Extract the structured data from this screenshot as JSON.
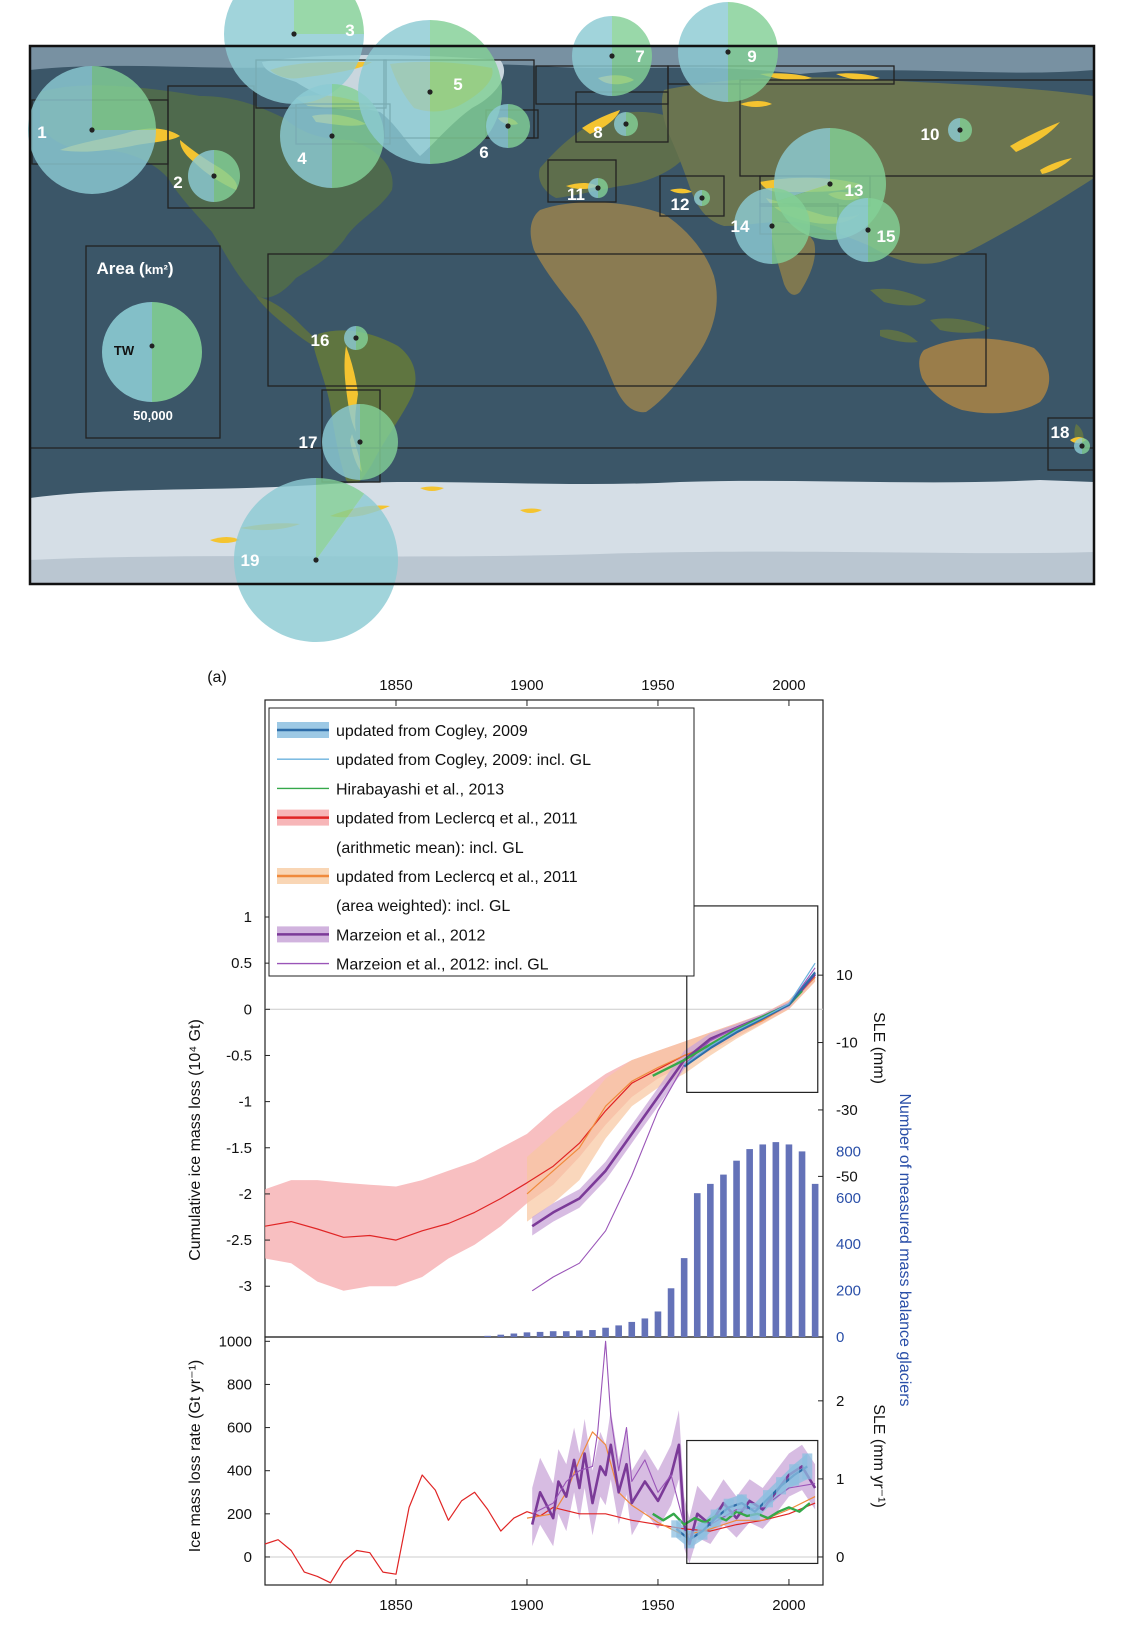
{
  "panel_label": "(a)",
  "map": {
    "legend_title": "Area",
    "legend_unit": "km²",
    "legend_center_label": "TW",
    "legend_value": "50,000",
    "regions": [
      {
        "id": "1",
        "area_scale": 1.06
      },
      {
        "id": "2",
        "area_scale": 0.33
      },
      {
        "id": "3",
        "area_scale": 1.0
      },
      {
        "id": "4",
        "area_scale": 0.63
      },
      {
        "id": "5",
        "area_scale": 1.17
      },
      {
        "id": "6",
        "area_scale": 0.08
      },
      {
        "id": "7",
        "area_scale": 0.38
      },
      {
        "id": "8",
        "area_scale": 0.04
      },
      {
        "id": "9",
        "area_scale": 0.59
      },
      {
        "id": "10",
        "area_scale": 0.03
      },
      {
        "id": "11",
        "area_scale": 0.02
      },
      {
        "id": "12",
        "area_scale": 0.01
      },
      {
        "id": "13",
        "area_scale": 0.75
      },
      {
        "id": "14",
        "area_scale": 0.4
      },
      {
        "id": "15",
        "area_scale": 0.26
      },
      {
        "id": "16",
        "area_scale": 0.04
      },
      {
        "id": "17",
        "area_scale": 0.35
      },
      {
        "id": "18",
        "area_scale": 0.01
      },
      {
        "id": "19",
        "area_scale": 1.75
      }
    ],
    "colors": {
      "ocean": "#3b5668",
      "circle_blue": "#8ccbd3",
      "circle_green": "#83d096",
      "glacier": "#f4c430",
      "ice": "#d9e2e8",
      "box": "#222222"
    }
  },
  "chart_data": [
    {
      "type": "line",
      "x_axis_top_ticks": [
        "1850",
        "1900",
        "1950",
        "2000"
      ],
      "xlim": [
        1800,
        2013
      ],
      "ylabel": "Cumulative ice mass loss (10⁴ Gt)",
      "ylim": [
        -3.55,
        1.0
      ],
      "y_ticks": [
        "1",
        "0.5",
        "0",
        "-0.5",
        "-1",
        "-1.5",
        "-2",
        "-2.5",
        "-3"
      ],
      "y2label": "SLE (mm)",
      "y2_ticks": [
        "10",
        "-10",
        "-30",
        "-50"
      ],
      "y3label": "Number of measured mass balance glaciers",
      "y3_ticks": [
        "800",
        "600",
        "400",
        "200",
        "0"
      ],
      "legend": [
        {
          "label": "updated from Cogley, 2009",
          "color": "#2d6ca8",
          "band": "#8cbfe0"
        },
        {
          "label": "updated from Cogley, 2009: incl. GL",
          "color": "#6bb2de",
          "band": ""
        },
        {
          "label": "Hirabayashi et al., 2013",
          "color": "#35a84a",
          "band": ""
        },
        {
          "label": "updated from Leclercq et al., 2011",
          "color": "#e02525",
          "band": "#f6a9ac"
        },
        {
          "label": "(arithmetic mean): incl. GL",
          "color": "",
          "band": ""
        },
        {
          "label": "updated from Leclercq et al., 2011",
          "color": "#f08a3c",
          "band": "#f8cfa8"
        },
        {
          "label": "(area weighted): incl. GL",
          "color": "",
          "band": ""
        },
        {
          "label": "Marzeion et al., 2012",
          "color": "#7b3a98",
          "band": "#c9a6d8"
        },
        {
          "label": "Marzeion et al., 2012: incl. GL",
          "color": "#9a55b8",
          "band": ""
        }
      ],
      "series": [
        {
          "name": "updated from Leclercq et al., 2011 (arithmetic mean): incl. GL",
          "x": [
            1800,
            1810,
            1820,
            1830,
            1840,
            1850,
            1860,
            1870,
            1880,
            1890,
            1900,
            1910,
            1920,
            1930,
            1940,
            1950,
            1960,
            1970,
            1980,
            1990,
            2000,
            2010
          ],
          "y": [
            -2.35,
            -2.3,
            -2.38,
            -2.47,
            -2.45,
            -2.5,
            -2.4,
            -2.32,
            -2.2,
            -2.05,
            -1.88,
            -1.7,
            -1.45,
            -1.1,
            -0.8,
            -0.65,
            -0.5,
            -0.4,
            -0.25,
            -0.12,
            0.05,
            0.35
          ],
          "band_lo": [
            -2.7,
            -2.75,
            -2.95,
            -3.05,
            -3.0,
            -3.0,
            -2.9,
            -2.7,
            -2.55,
            -2.35,
            -2.1,
            -1.9,
            -1.6,
            -1.25,
            -0.95,
            -0.75,
            -0.6,
            -0.45,
            -0.3,
            -0.15,
            0.0,
            0.3
          ],
          "band_hi": [
            -1.95,
            -1.85,
            -1.85,
            -1.88,
            -1.9,
            -1.92,
            -1.85,
            -1.75,
            -1.65,
            -1.5,
            -1.35,
            -1.1,
            -0.9,
            -0.7,
            -0.55,
            -0.45,
            -0.35,
            -0.25,
            -0.15,
            -0.05,
            0.1,
            0.4
          ]
        },
        {
          "name": "updated from Leclercq et al., 2011 (area weighted): incl. GL",
          "x": [
            1900,
            1910,
            1920,
            1930,
            1940,
            1950,
            1960,
            1970,
            1980,
            1990,
            2000,
            2010
          ],
          "y": [
            -2.0,
            -1.75,
            -1.5,
            -1.05,
            -0.78,
            -0.63,
            -0.5,
            -0.38,
            -0.25,
            -0.12,
            0.05,
            0.35
          ],
          "band_lo": [
            -2.3,
            -2.1,
            -1.85,
            -1.4,
            -1.05,
            -0.85,
            -0.7,
            -0.5,
            -0.32,
            -0.16,
            0.0,
            0.3
          ],
          "band_hi": [
            -1.6,
            -1.35,
            -1.1,
            -0.75,
            -0.55,
            -0.45,
            -0.35,
            -0.25,
            -0.15,
            -0.05,
            0.1,
            0.4
          ]
        },
        {
          "name": "Marzeion et al., 2012",
          "x": [
            1902,
            1910,
            1920,
            1930,
            1940,
            1950,
            1960,
            1970,
            1980,
            1990,
            2000,
            2010
          ],
          "y": [
            -2.35,
            -2.2,
            -2.05,
            -1.75,
            -1.35,
            -0.95,
            -0.55,
            -0.32,
            -0.2,
            -0.08,
            0.05,
            0.38
          ],
          "band_lo": [
            -2.45,
            -2.3,
            -2.15,
            -1.85,
            -1.45,
            -1.05,
            -0.65,
            -0.38,
            -0.24,
            -0.11,
            0.02,
            0.34
          ],
          "band_hi": [
            -2.25,
            -2.1,
            -1.95,
            -1.65,
            -1.25,
            -0.85,
            -0.45,
            -0.26,
            -0.16,
            -0.05,
            0.08,
            0.42
          ]
        },
        {
          "name": "Marzeion et al., 2012: incl. GL",
          "x": [
            1902,
            1910,
            1920,
            1930,
            1940,
            1950,
            1960,
            1970,
            1980,
            1990,
            2000,
            2010
          ],
          "y": [
            -3.05,
            -2.9,
            -2.75,
            -2.4,
            -1.8,
            -1.1,
            -0.6,
            -0.34,
            -0.2,
            -0.08,
            0.05,
            0.45
          ]
        },
        {
          "name": "Hirabayashi et al., 2013",
          "x": [
            1948,
            1960,
            1970,
            1980,
            1990,
            2000,
            2005
          ],
          "y": [
            -0.72,
            -0.55,
            -0.38,
            -0.22,
            -0.08,
            0.05,
            0.2
          ]
        },
        {
          "name": "updated from Cogley, 2009",
          "x": [
            1960,
            1970,
            1980,
            1990,
            2000,
            2010
          ],
          "y": [
            -0.62,
            -0.42,
            -0.25,
            -0.1,
            0.05,
            0.4
          ]
        },
        {
          "name": "updated from Cogley, 2009: incl. GL",
          "x": [
            1960,
            1970,
            1980,
            1990,
            2000,
            2010
          ],
          "y": [
            -0.6,
            -0.4,
            -0.23,
            -0.09,
            0.06,
            0.5
          ]
        }
      ],
      "bars": {
        "x": [
          1885,
          1890,
          1895,
          1900,
          1905,
          1910,
          1915,
          1920,
          1925,
          1930,
          1935,
          1940,
          1945,
          1950,
          1955,
          1960,
          1965,
          1970,
          1975,
          1980,
          1985,
          1990,
          1995,
          2000,
          2005,
          2010
        ],
        "values": [
          5,
          10,
          15,
          20,
          22,
          25,
          25,
          28,
          30,
          40,
          50,
          65,
          80,
          110,
          210,
          340,
          620,
          660,
          700,
          760,
          810,
          830,
          840,
          830,
          800,
          660
        ],
        "ylim": [
          0,
          1000
        ],
        "color": "#6472b8"
      },
      "inset_box": {
        "x": [
          1961,
          2011
        ],
        "y": [
          -0.9,
          1.12
        ]
      }
    },
    {
      "type": "line",
      "x_axis_bottom_ticks": [
        "1850",
        "1900",
        "1950",
        "2000"
      ],
      "xlim": [
        1800,
        2013
      ],
      "ylabel": "Ice mass loss rate (Gt yr⁻¹)",
      "ylim": [
        -130,
        1020
      ],
      "y_ticks": [
        "1000",
        "800",
        "600",
        "400",
        "200",
        "0"
      ],
      "y2label": "SLE (mm yr⁻¹)",
      "y2_ticks": [
        "2",
        "1",
        "0"
      ],
      "series": [
        {
          "name": "updated from Leclercq et al., 2011 (arithmetic mean): incl. GL",
          "x": [
            1800,
            1805,
            1810,
            1815,
            1820,
            1825,
            1830,
            1835,
            1840,
            1845,
            1850,
            1855,
            1860,
            1865,
            1870,
            1875,
            1880,
            1885,
            1890,
            1895,
            1900,
            1905,
            1910,
            1920,
            1930,
            1940,
            1950,
            1960,
            1970,
            1980,
            1990,
            2000,
            2010
          ],
          "y": [
            60,
            80,
            30,
            -70,
            -90,
            -120,
            -20,
            30,
            20,
            -70,
            -80,
            230,
            380,
            310,
            170,
            260,
            300,
            220,
            120,
            180,
            210,
            190,
            230,
            200,
            200,
            170,
            150,
            130,
            120,
            150,
            170,
            200,
            250
          ]
        },
        {
          "name": "updated from Leclercq et al., 2011 (area weighted): incl. GL",
          "x": [
            1900,
            1910,
            1915,
            1920,
            1925,
            1930,
            1935,
            1940,
            1950,
            1960,
            1970,
            1980,
            1990,
            2000,
            2010
          ],
          "y": [
            180,
            200,
            300,
            450,
            580,
            520,
            300,
            240,
            160,
            100,
            130,
            170,
            170,
            220,
            280
          ]
        },
        {
          "name": "Marzeion et al., 2012",
          "x": [
            1902,
            1905,
            1910,
            1912,
            1915,
            1918,
            1920,
            1922,
            1925,
            1928,
            1930,
            1932,
            1935,
            1938,
            1940,
            1945,
            1950,
            1955,
            1958,
            1960,
            1962,
            1965,
            1970,
            1975,
            1980,
            1985,
            1990,
            1995,
            2000,
            2005,
            2010
          ],
          "y": [
            150,
            300,
            180,
            350,
            280,
            450,
            320,
            480,
            250,
            420,
            380,
            520,
            300,
            430,
            250,
            350,
            260,
            380,
            520,
            150,
            60,
            200,
            150,
            250,
            180,
            260,
            220,
            300,
            380,
            420,
            320
          ],
          "band_lo": [
            50,
            150,
            50,
            200,
            120,
            300,
            170,
            320,
            100,
            280,
            240,
            360,
            150,
            290,
            100,
            210,
            130,
            240,
            360,
            40,
            -30,
            90,
            60,
            150,
            90,
            160,
            130,
            200,
            280,
            310,
            220
          ],
          "band_hi": [
            320,
            460,
            340,
            500,
            430,
            600,
            480,
            640,
            400,
            580,
            520,
            680,
            450,
            580,
            400,
            500,
            400,
            520,
            680,
            280,
            180,
            330,
            260,
            360,
            280,
            360,
            320,
            400,
            480,
            520,
            430
          ]
        },
        {
          "name": "Marzeion et al., 2012: incl. GL",
          "x": [
            1902,
            1910,
            1915,
            1920,
            1925,
            1927,
            1930,
            1932,
            1935,
            1938,
            1940,
            1945,
            1950,
            1955,
            1960,
            1965,
            1970,
            1980,
            1990,
            2000,
            2010
          ],
          "y": [
            200,
            250,
            350,
            400,
            420,
            580,
            1000,
            650,
            400,
            600,
            350,
            450,
            300,
            380,
            150,
            180,
            150,
            220,
            230,
            320,
            340
          ]
        },
        {
          "name": "Hirabayashi et al., 2013",
          "x": [
            1948,
            1952,
            1956,
            1960,
            1964,
            1968,
            1972,
            1976,
            1980,
            1984,
            1988,
            1992,
            1996,
            2000,
            2004,
            2008
          ],
          "y": [
            200,
            170,
            200,
            150,
            180,
            160,
            190,
            170,
            210,
            190,
            200,
            180,
            210,
            230,
            210,
            250
          ]
        },
        {
          "name": "updated from Cogley, 2009",
          "x": [
            1957,
            1962,
            1967,
            1972,
            1977,
            1982,
            1987,
            1992,
            1997,
            2002,
            2007
          ],
          "y": [
            130,
            80,
            120,
            180,
            230,
            250,
            210,
            270,
            330,
            380,
            420
          ],
          "band_lo": [
            90,
            40,
            80,
            140,
            190,
            210,
            170,
            230,
            290,
            330,
            360
          ],
          "band_hi": [
            170,
            120,
            160,
            220,
            270,
            290,
            250,
            310,
            370,
            430,
            480
          ]
        }
      ],
      "inset_box": {
        "x": [
          1961,
          2011
        ],
        "y": [
          -30,
          540
        ]
      }
    }
  ]
}
